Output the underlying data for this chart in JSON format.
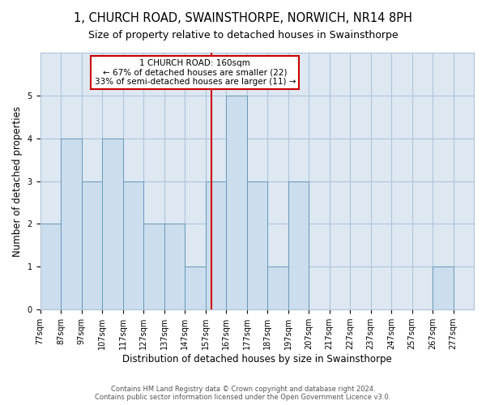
{
  "title": "1, CHURCH ROAD, SWAINSTHORPE, NORWICH, NR14 8PH",
  "subtitle": "Size of property relative to detached houses in Swainsthorpe",
  "xlabel": "Distribution of detached houses by size in Swainsthorpe",
  "ylabel": "Number of detached properties",
  "bar_edges": [
    77,
    87,
    97,
    107,
    117,
    127,
    137,
    147,
    157,
    167,
    177,
    187,
    197,
    207,
    217,
    227,
    237,
    247,
    257,
    267,
    277
  ],
  "bar_values": [
    2,
    4,
    3,
    4,
    3,
    2,
    2,
    1,
    3,
    5,
    3,
    1,
    3,
    0,
    0,
    0,
    0,
    0,
    0,
    1
  ],
  "bar_color": "#ccdded",
  "bar_edge_color": "#6699bb",
  "property_size": 160,
  "vline_color": "#cc0000",
  "annotation_text": "1 CHURCH ROAD: 160sqm\n← 67% of detached houses are smaller (22)\n33% of semi-detached houses are larger (11) →",
  "annotation_box_facecolor": "#ffffff",
  "annotation_box_edgecolor": "#cc0000",
  "ylim": [
    0,
    6
  ],
  "yticks": [
    0,
    1,
    2,
    3,
    4,
    5,
    6
  ],
  "footnote": "Contains HM Land Registry data © Crown copyright and database right 2024.\nContains public sector information licensed under the Open Government Licence v3.0.",
  "grid_color": "#b0c4d8",
  "bg_color": "#dde8f3",
  "title_fontsize": 10.5,
  "subtitle_fontsize": 9,
  "tick_label_fontsize": 7,
  "ylabel_fontsize": 8.5,
  "xlabel_fontsize": 8.5,
  "annotation_fontsize": 7.5,
  "footnote_fontsize": 6,
  "footnote_color": "#555555"
}
